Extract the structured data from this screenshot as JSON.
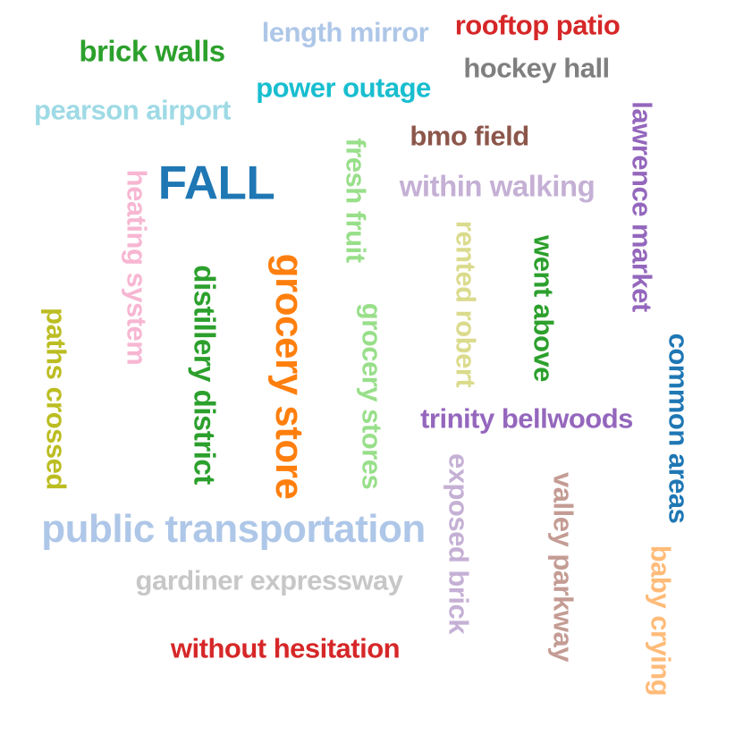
{
  "words": [
    {
      "id": "brick-walls",
      "text": "brick walls",
      "color": "#2ca02c",
      "orientation": "horizontal"
    },
    {
      "id": "length-mirror",
      "text": "length mirror",
      "color": "#aec7e8",
      "orientation": "horizontal"
    },
    {
      "id": "rooftop-patio",
      "text": "rooftop patio",
      "color": "#d62728",
      "orientation": "horizontal"
    },
    {
      "id": "hockey-hall",
      "text": "hockey hall",
      "color": "#7f7f7f",
      "orientation": "horizontal"
    },
    {
      "id": "power-outage",
      "text": "power outage",
      "color": "#17becf",
      "orientation": "horizontal"
    },
    {
      "id": "pearson-airport",
      "text": "pearson airport",
      "color": "#9edae5",
      "orientation": "horizontal"
    },
    {
      "id": "bmo-field",
      "text": "bmo field",
      "color": "#8c564b",
      "orientation": "horizontal"
    },
    {
      "id": "lawrence-market",
      "text": "lawrence market",
      "color": "#9467bd",
      "orientation": "vertical"
    },
    {
      "id": "fall",
      "text": "FALL",
      "color": "#1f77b4",
      "orientation": "horizontal"
    },
    {
      "id": "fresh-fruit",
      "text": "fresh fruit",
      "color": "#98df8a",
      "orientation": "vertical"
    },
    {
      "id": "within-walking",
      "text": "within walking",
      "color": "#c5b0d5",
      "orientation": "horizontal"
    },
    {
      "id": "heating-system",
      "text": "heating system",
      "color": "#f7b6d2",
      "orientation": "vertical"
    },
    {
      "id": "rented-robert",
      "text": "rented robert",
      "color": "#dbdb8d",
      "orientation": "vertical"
    },
    {
      "id": "went-above",
      "text": "went above",
      "color": "#2ca02c",
      "orientation": "vertical"
    },
    {
      "id": "distillery-district",
      "text": "distillery district",
      "color": "#2ca02c",
      "orientation": "vertical"
    },
    {
      "id": "grocery-store",
      "text": "grocery store",
      "color": "#ff7f0e",
      "orientation": "vertical"
    },
    {
      "id": "grocery-stores",
      "text": "grocery stores",
      "color": "#98df8a",
      "orientation": "vertical"
    },
    {
      "id": "paths-crossed",
      "text": "paths crossed",
      "color": "#bcbd22",
      "orientation": "vertical"
    },
    {
      "id": "common-areas",
      "text": "common areas",
      "color": "#1f77b4",
      "orientation": "vertical"
    },
    {
      "id": "trinity-bellwoods",
      "text": "trinity bellwoods",
      "color": "#9467bd",
      "orientation": "horizontal"
    },
    {
      "id": "exposed-brick",
      "text": "exposed brick",
      "color": "#c5b0d5",
      "orientation": "vertical"
    },
    {
      "id": "valley-parkway",
      "text": "valley parkway",
      "color": "#c49c94",
      "orientation": "vertical"
    },
    {
      "id": "public-transportation",
      "text": "public transportation",
      "color": "#aec7e8",
      "orientation": "horizontal"
    },
    {
      "id": "baby-crying",
      "text": "baby crying",
      "color": "#ffbb78",
      "orientation": "vertical"
    },
    {
      "id": "gardiner-expressway",
      "text": "gardiner expressway",
      "color": "#c7c7c7",
      "orientation": "horizontal"
    },
    {
      "id": "without-hesitation",
      "text": "without hesitation",
      "color": "#d62728",
      "orientation": "horizontal"
    }
  ]
}
